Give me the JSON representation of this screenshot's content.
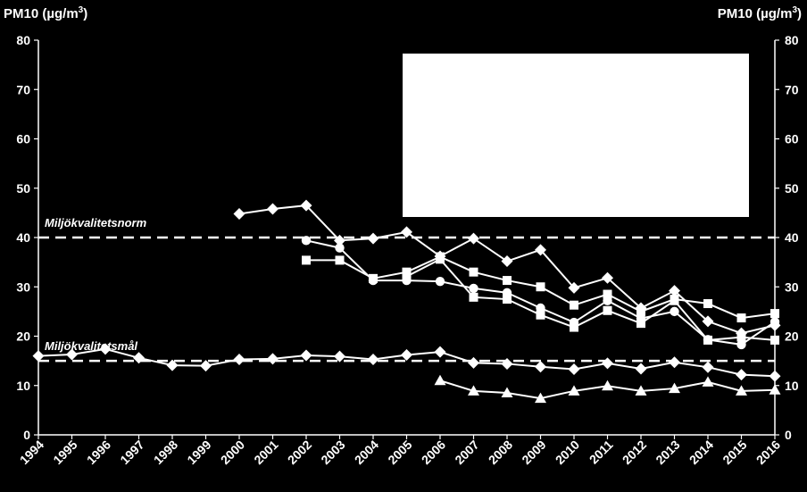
{
  "chart_data": {
    "type": "line",
    "ylabel_left": "PM10 (µg/m",
    "ylabel_right": "PM10 (µg/m",
    "ylabel_sup": "3",
    "ylabel_close": ")",
    "ylim": [
      0,
      80
    ],
    "yticks": [
      0,
      10,
      20,
      30,
      40,
      50,
      60,
      70,
      80
    ],
    "categories": [
      "1994",
      "1995",
      "1996",
      "1997",
      "1998",
      "1999",
      "2000",
      "2001",
      "2002",
      "2003",
      "2004",
      "2005",
      "2006",
      "2007",
      "2008",
      "2009",
      "2010",
      "2011",
      "2012",
      "2013",
      "2014",
      "2015",
      "2016"
    ],
    "reference_lines": [
      {
        "label": "Miljökvalitetsnorm",
        "value": 40
      },
      {
        "label": "Miljökvalitetsmål",
        "value": 15
      }
    ],
    "series": [
      {
        "marker": "diamond",
        "values": [
          null,
          null,
          null,
          null,
          null,
          null,
          44.8,
          45.8,
          46.5,
          39.4,
          39.8,
          41.1,
          36.2,
          39.8,
          35.2,
          37.5,
          29.8,
          31.8,
          25.7,
          29.2,
          23.0,
          20.6,
          22.2
        ]
      },
      {
        "marker": "circle",
        "values": [
          null,
          null,
          null,
          null,
          null,
          null,
          null,
          null,
          39.4,
          37.9,
          31.3,
          31.3,
          31.1,
          29.7,
          28.8,
          25.7,
          22.8,
          27.2,
          23.6,
          25.0,
          19.3,
          18.3,
          22.9
        ]
      },
      {
        "marker": "square",
        "values": [
          null,
          null,
          null,
          null,
          null,
          null,
          null,
          null,
          35.4,
          35.4,
          31.7,
          33.0,
          36.1,
          33.0,
          31.3,
          30.0,
          26.3,
          28.5,
          25.0,
          27.5,
          26.6,
          23.7,
          24.6
        ]
      },
      {
        "marker": "square",
        "values": [
          null,
          null,
          null,
          null,
          null,
          null,
          null,
          null,
          null,
          null,
          null,
          32.1,
          35.6,
          27.9,
          27.5,
          24.3,
          21.8,
          25.2,
          22.6,
          27.2,
          19.2,
          19.8,
          19.2
        ]
      },
      {
        "marker": "diamond",
        "values": [
          16.0,
          16.3,
          17.4,
          15.6,
          14.1,
          14.0,
          15.3,
          15.4,
          16.1,
          15.9,
          15.3,
          16.2,
          16.8,
          14.6,
          14.4,
          13.8,
          13.3,
          14.5,
          13.4,
          14.7,
          13.7,
          12.2,
          11.9
        ]
      },
      {
        "marker": "triangle",
        "values": [
          null,
          null,
          null,
          null,
          null,
          null,
          null,
          null,
          null,
          null,
          null,
          null,
          11.0,
          8.9,
          8.5,
          7.4,
          8.9,
          9.9,
          8.9,
          9.4,
          10.7,
          8.9,
          9.1
        ]
      }
    ],
    "legend": {
      "placement": "top-right",
      "entries": []
    }
  }
}
